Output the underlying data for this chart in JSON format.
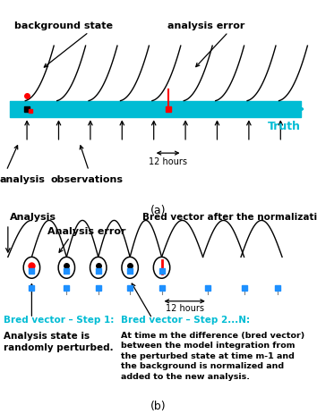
{
  "bg_color": "#ffffff",
  "cyan_color": "#00bcd4",
  "red_color": "#ff0000",
  "black_color": "#000000",
  "blue_sq_color": "#1E90FF",
  "title_a": "(a)",
  "title_b": "(b)",
  "truth_label": "Truth",
  "analysis_label": "analysis",
  "observations_label": "observations",
  "bg_state_label": "background state",
  "ae_label_a": "analysis error",
  "analysis_b_label": "Analysis",
  "ae_label_b": "Analysis error",
  "bv_norm_label": "Bred vector after the normalization",
  "step1_title": "Bred vector – Step 1:",
  "step1_text": "Analysis state is\nrandomly perturbed.",
  "step2_title": "Bred vector – Step 2...N:",
  "step2_text": "At time m the difference (bred vector)\nbetween the model integration from\nthe perturbed state at time m-1 and\nthe background is normalized and\nadded to the new analysis.",
  "hours_label": "12 hours"
}
